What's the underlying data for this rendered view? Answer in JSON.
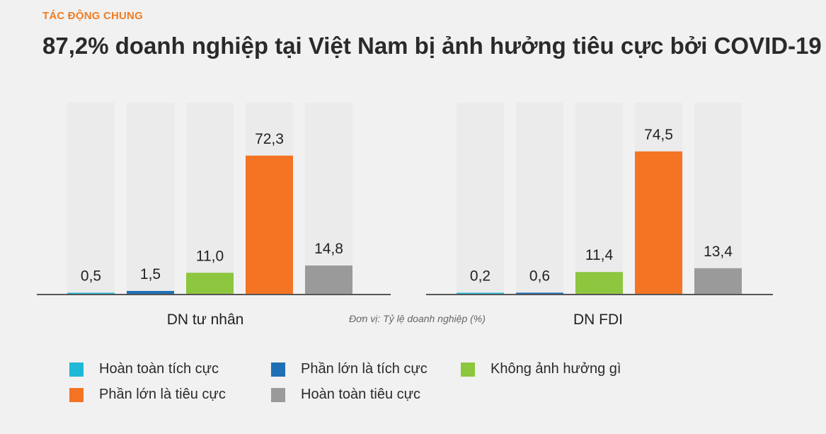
{
  "header": {
    "eyebrow": "TÁC ĐỘNG CHUNG",
    "title": "87,2% doanh nghiệp tại Việt Nam bị ảnh hưởng tiêu cực bởi COVID-19"
  },
  "unit_note": "Đơn vị: Tỷ lệ doanh nghiệp (%)",
  "chart_data": {
    "type": "bar",
    "categories": [
      "DN tư nhân",
      "DN FDI"
    ],
    "ylim": [
      0,
      100
    ],
    "grid": false,
    "legend_position": "bottom",
    "series": [
      {
        "name": "Hoàn toàn tích cực",
        "color": "#20b8d8",
        "values": [
          0.5,
          0.2
        ],
        "labels": [
          "0,5",
          "0,2"
        ]
      },
      {
        "name": "Phần lớn là tích cực",
        "color": "#1f6fb4",
        "values": [
          1.5,
          0.6
        ],
        "labels": [
          "1,5",
          "0,6"
        ]
      },
      {
        "name": "Không ảnh hưởng gì",
        "color": "#8dc63f",
        "values": [
          11.0,
          11.4
        ],
        "labels": [
          "11,0",
          "11,4"
        ]
      },
      {
        "name": "Phần lớn là tiêu cực",
        "color": "#f47424",
        "values": [
          72.3,
          74.5
        ],
        "labels": [
          "72,3",
          "74,5"
        ]
      },
      {
        "name": "Hoàn toàn tiêu cực",
        "color": "#9a9a9a",
        "values": [
          14.8,
          13.4
        ],
        "labels": [
          "14,8",
          "13,4"
        ]
      }
    ]
  }
}
